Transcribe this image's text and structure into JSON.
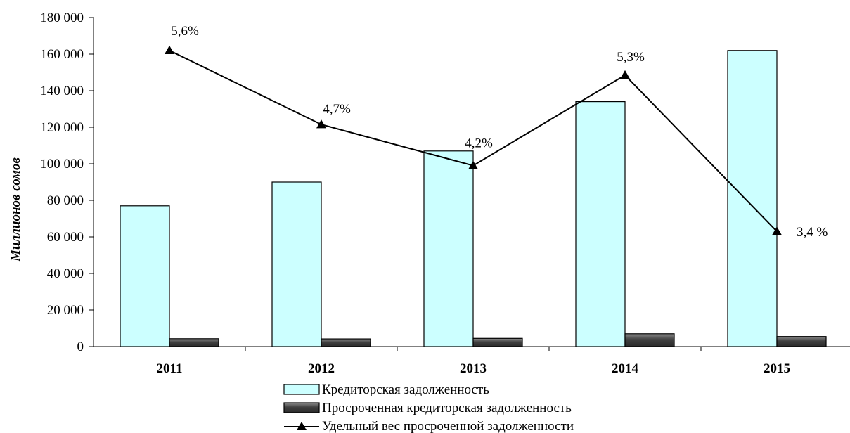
{
  "chart_data": {
    "type": "bar",
    "categories": [
      "2011",
      "2012",
      "2013",
      "2014",
      "2015"
    ],
    "series": [
      {
        "name": "Кредиторская задолженность",
        "kind": "bar",
        "axis": "left",
        "color": "#ccffff",
        "values": [
          77000,
          90000,
          107000,
          134000,
          162000
        ]
      },
      {
        "name": "Просроченная кредиторская задолженность",
        "kind": "bar",
        "axis": "left",
        "color": "#404040",
        "values": [
          4300,
          4200,
          4500,
          7000,
          5500
        ]
      },
      {
        "name": "Удельный вес просроченной задолженности",
        "kind": "line",
        "axis": "secondary",
        "marker": "triangle",
        "color": "#000000",
        "values": [
          5.6,
          4.7,
          4.2,
          5.3,
          3.4
        ],
        "labels": [
          "5,6%",
          "4,7%",
          "4,2%",
          "5,3%",
          "3,4 %"
        ]
      }
    ],
    "ylabel": "Миллионов сомов",
    "ylim": [
      0,
      180000
    ],
    "yticks": [
      0,
      20000,
      40000,
      60000,
      80000,
      100000,
      120000,
      140000,
      160000,
      180000
    ],
    "ytick_labels": [
      "0",
      "20 000",
      "40 000",
      "60 000",
      "80 000",
      "100 000",
      "120 000",
      "140 000",
      "160 000",
      "180 000"
    ],
    "secondary_ylim": [
      2.0,
      6.0
    ],
    "grid": false,
    "legend_position": "bottom"
  }
}
